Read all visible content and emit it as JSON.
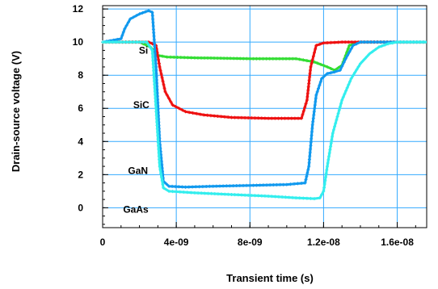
{
  "chart_data": {
    "type": "line",
    "title": "",
    "xlabel": "Transient time (s)",
    "ylabel": "Drain-source voltage (V)",
    "xlim": [
      0,
      1.76e-08
    ],
    "ylim": [
      -1.2,
      12.2
    ],
    "xticks": [
      0,
      4e-09,
      8e-09,
      1.2e-08,
      1.6e-08
    ],
    "xtick_labels": [
      "0",
      "4e-09",
      "8e-09",
      "1.2e-08",
      "1.6e-08"
    ],
    "yticks": [
      0,
      2,
      4,
      6,
      8,
      10,
      12
    ],
    "ytick_labels": [
      "0",
      "2",
      "4",
      "6",
      "8",
      "10",
      "12"
    ],
    "grid": true,
    "legend": "inline labels",
    "series": [
      {
        "name": "Si",
        "color": "#33dd33",
        "label_at": [
          2.22e-09,
          9.3
        ],
        "x": [
          0,
          2e-09,
          2.6e-09,
          3e-09,
          3.5e-09,
          5e-09,
          8e-09,
          1.05e-08,
          1.15e-08,
          1.22e-08,
          1.26e-08,
          1.3e-08,
          1.34e-08,
          1.4e-08,
          1.76e-08
        ],
        "y": [
          10,
          10,
          9.7,
          9.2,
          9.1,
          9.05,
          9.0,
          9.0,
          8.8,
          8.5,
          8.3,
          8.6,
          9.8,
          10.0,
          10.0
        ]
      },
      {
        "name": "SiC",
        "color": "#ee1111",
        "label_at": [
          2.1e-09,
          6.0
        ],
        "x": [
          0,
          2.5e-09,
          2.9e-09,
          3.1e-09,
          3.4e-09,
          3.8e-09,
          4.5e-09,
          5.5e-09,
          7e-09,
          9e-09,
          1.08e-08,
          1.11e-08,
          1.13e-08,
          1.16e-08,
          1.2e-08,
          1.3e-08,
          1.76e-08
        ],
        "y": [
          10,
          10,
          9.8,
          8.5,
          7.0,
          6.2,
          5.8,
          5.6,
          5.45,
          5.4,
          5.4,
          6.5,
          8.5,
          9.8,
          9.95,
          10.0,
          10.0
        ]
      },
      {
        "name": "GaN",
        "color": "#1199ee",
        "label_at": [
          1.92e-09,
          2.05
        ],
        "x": [
          0,
          1e-09,
          1.2e-09,
          1.5e-09,
          2e-09,
          2.5e-09,
          2.7e-09,
          2.9e-09,
          3.1e-09,
          3.3e-09,
          3.6e-09,
          4.5e-09,
          6e-09,
          8e-09,
          1e-08,
          1.1e-08,
          1.12e-08,
          1.14e-08,
          1.16e-08,
          1.19e-08,
          1.22e-08,
          1.26e-08,
          1.29e-08,
          1.32e-08,
          1.36e-08,
          1.4e-08,
          1.76e-08
        ],
        "y": [
          10,
          10.2,
          10.8,
          11.4,
          11.7,
          11.9,
          11.8,
          8.5,
          4.0,
          1.6,
          1.3,
          1.25,
          1.3,
          1.35,
          1.4,
          1.5,
          2.5,
          5.0,
          6.8,
          7.8,
          8.1,
          8.2,
          8.3,
          9.0,
          9.8,
          10.0,
          10.0
        ]
      },
      {
        "name": "GaAs",
        "color": "#33eeee",
        "label_at": [
          1.8e-09,
          -0.3
        ],
        "x": [
          0,
          2.4e-09,
          2.7e-09,
          2.9e-09,
          3.1e-09,
          3.3e-09,
          3.6e-09,
          5e-09,
          7e-09,
          9e-09,
          1.05e-08,
          1.15e-08,
          1.18e-08,
          1.2e-08,
          1.22e-08,
          1.25e-08,
          1.3e-08,
          1.35e-08,
          1.4e-08,
          1.45e-08,
          1.5e-08,
          1.55e-08,
          1.6e-08,
          1.76e-08
        ],
        "y": [
          10,
          10,
          9.5,
          6.0,
          2.5,
          1.2,
          1.0,
          0.9,
          0.8,
          0.7,
          0.6,
          0.55,
          0.6,
          1.0,
          2.5,
          4.5,
          6.5,
          7.8,
          8.7,
          9.3,
          9.7,
          9.9,
          10.0,
          10.0
        ]
      }
    ]
  }
}
